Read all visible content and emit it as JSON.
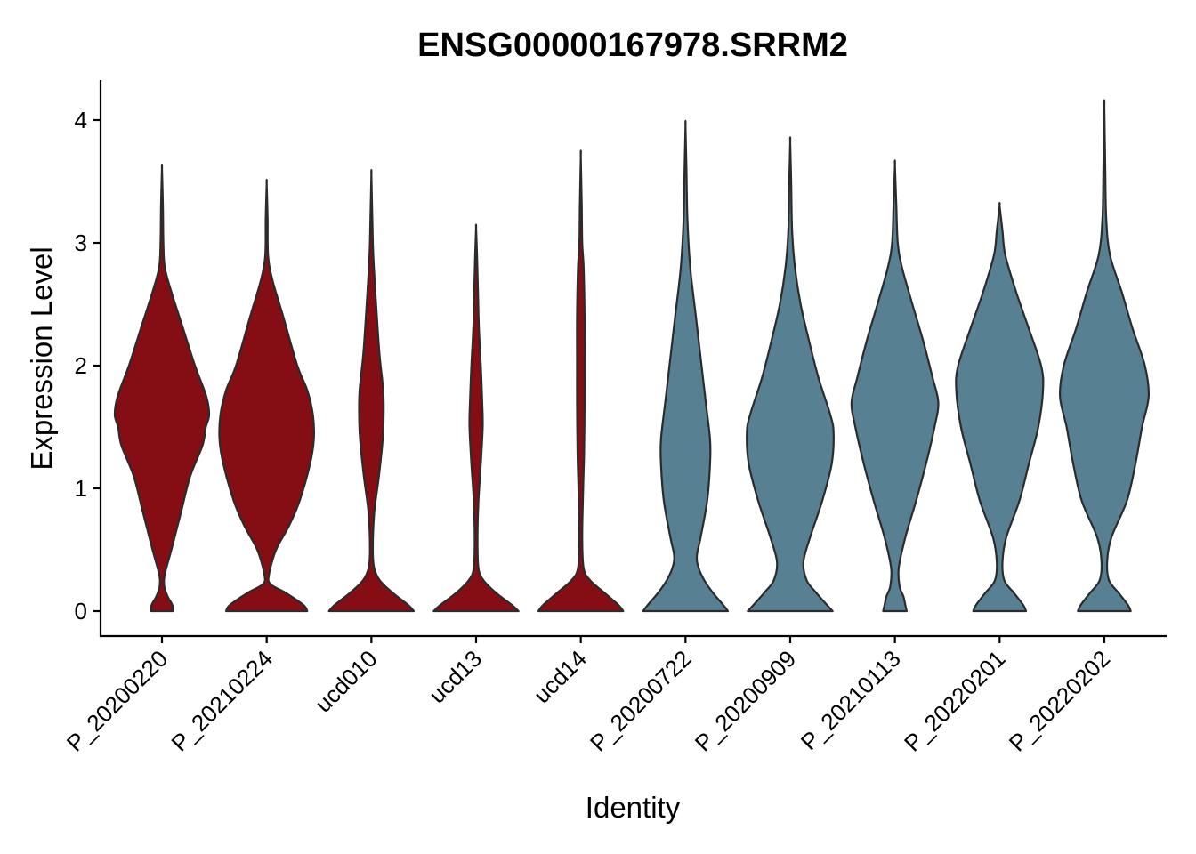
{
  "chart_data": {
    "type": "violin",
    "title": "ENSG00000167978.SRRM2",
    "xlabel": "Identity",
    "ylabel": "Expression Level",
    "ylim": [
      -0.2,
      4.3
    ],
    "yticks": [
      0,
      1,
      2,
      3,
      4
    ],
    "grid": false,
    "legend": "none",
    "categories": [
      "P_20200220",
      "P_20210224",
      "ucd010",
      "ucd13",
      "ucd14",
      "P_20200722",
      "P_20200909",
      "P_20210113",
      "P_20220201",
      "P_20220202"
    ],
    "colors": [
      "#850e15",
      "#850e15",
      "#850e15",
      "#850e15",
      "#850e15",
      "#578193",
      "#578193",
      "#578193",
      "#578193",
      "#578193"
    ],
    "series": [
      {
        "category": "P_20200220",
        "max": 3.6,
        "profile": [
          [
            0,
            0.23
          ],
          [
            0.05,
            0.22
          ],
          [
            0.12,
            0.12
          ],
          [
            0.2,
            0.05
          ],
          [
            0.3,
            0.06
          ],
          [
            0.5,
            0.2
          ],
          [
            0.8,
            0.4
          ],
          [
            1.1,
            0.6
          ],
          [
            1.35,
            0.86
          ],
          [
            1.5,
            0.93
          ],
          [
            1.6,
            1.0
          ],
          [
            1.75,
            0.94
          ],
          [
            2.0,
            0.7
          ],
          [
            2.3,
            0.45
          ],
          [
            2.6,
            0.2
          ],
          [
            2.8,
            0.06
          ],
          [
            3.0,
            0.03
          ],
          [
            3.3,
            0.02
          ],
          [
            3.6,
            0.0
          ]
        ]
      },
      {
        "category": "P_20210224",
        "max": 3.48,
        "profile": [
          [
            0,
            0.86
          ],
          [
            0.05,
            0.78
          ],
          [
            0.15,
            0.4
          ],
          [
            0.22,
            0.08
          ],
          [
            0.3,
            0.05
          ],
          [
            0.5,
            0.2
          ],
          [
            0.7,
            0.48
          ],
          [
            0.9,
            0.7
          ],
          [
            1.2,
            0.92
          ],
          [
            1.4,
            1.0
          ],
          [
            1.6,
            0.98
          ],
          [
            1.8,
            0.86
          ],
          [
            2.0,
            0.65
          ],
          [
            2.4,
            0.35
          ],
          [
            2.7,
            0.12
          ],
          [
            2.9,
            0.03
          ],
          [
            3.2,
            0.02
          ],
          [
            3.48,
            0.0
          ]
        ]
      },
      {
        "category": "ucd010",
        "max": 3.55,
        "profile": [
          [
            0,
            0.9
          ],
          [
            0.05,
            0.78
          ],
          [
            0.15,
            0.45
          ],
          [
            0.25,
            0.18
          ],
          [
            0.35,
            0.06
          ],
          [
            0.5,
            0.03
          ],
          [
            0.8,
            0.06
          ],
          [
            1.1,
            0.16
          ],
          [
            1.4,
            0.24
          ],
          [
            1.6,
            0.26
          ],
          [
            1.8,
            0.25
          ],
          [
            2.1,
            0.17
          ],
          [
            2.5,
            0.1
          ],
          [
            2.9,
            0.04
          ],
          [
            3.2,
            0.02
          ],
          [
            3.55,
            0.0
          ]
        ]
      },
      {
        "category": "ucd13",
        "max": 3.12,
        "profile": [
          [
            0,
            0.9
          ],
          [
            0.05,
            0.76
          ],
          [
            0.15,
            0.42
          ],
          [
            0.25,
            0.16
          ],
          [
            0.35,
            0.05
          ],
          [
            0.6,
            0.03
          ],
          [
            0.9,
            0.05
          ],
          [
            1.2,
            0.1
          ],
          [
            1.5,
            0.14
          ],
          [
            1.7,
            0.13
          ],
          [
            2.0,
            0.1
          ],
          [
            2.3,
            0.06
          ],
          [
            2.6,
            0.04
          ],
          [
            2.9,
            0.02
          ],
          [
            3.12,
            0.0
          ]
        ]
      },
      {
        "category": "ucd14",
        "max": 3.7,
        "profile": [
          [
            0,
            0.9
          ],
          [
            0.05,
            0.8
          ],
          [
            0.15,
            0.5
          ],
          [
            0.25,
            0.2
          ],
          [
            0.35,
            0.06
          ],
          [
            0.6,
            0.03
          ],
          [
            1.0,
            0.05
          ],
          [
            1.3,
            0.07
          ],
          [
            1.7,
            0.08
          ],
          [
            2.0,
            0.08
          ],
          [
            2.4,
            0.08
          ],
          [
            2.8,
            0.06
          ],
          [
            3.0,
            0.03
          ],
          [
            3.3,
            0.02
          ],
          [
            3.7,
            0.0
          ]
        ]
      },
      {
        "category": "P_20200722",
        "max": 3.95,
        "profile": [
          [
            0,
            0.9
          ],
          [
            0.05,
            0.8
          ],
          [
            0.15,
            0.58
          ],
          [
            0.25,
            0.4
          ],
          [
            0.35,
            0.28
          ],
          [
            0.45,
            0.24
          ],
          [
            0.6,
            0.32
          ],
          [
            0.9,
            0.46
          ],
          [
            1.2,
            0.52
          ],
          [
            1.4,
            0.52
          ],
          [
            1.7,
            0.43
          ],
          [
            2.0,
            0.34
          ],
          [
            2.4,
            0.22
          ],
          [
            2.8,
            0.1
          ],
          [
            3.2,
            0.04
          ],
          [
            3.6,
            0.02
          ],
          [
            3.95,
            0.0
          ]
        ]
      },
      {
        "category": "P_20200909",
        "max": 3.82,
        "profile": [
          [
            0,
            0.9
          ],
          [
            0.05,
            0.78
          ],
          [
            0.15,
            0.55
          ],
          [
            0.25,
            0.35
          ],
          [
            0.4,
            0.28
          ],
          [
            0.6,
            0.42
          ],
          [
            0.9,
            0.68
          ],
          [
            1.2,
            0.88
          ],
          [
            1.45,
            0.92
          ],
          [
            1.6,
            0.85
          ],
          [
            1.9,
            0.6
          ],
          [
            2.2,
            0.4
          ],
          [
            2.5,
            0.22
          ],
          [
            2.8,
            0.1
          ],
          [
            3.1,
            0.04
          ],
          [
            3.5,
            0.02
          ],
          [
            3.82,
            0.0
          ]
        ]
      },
      {
        "category": "P_20210113",
        "max": 3.63,
        "profile": [
          [
            0,
            0.25
          ],
          [
            0.05,
            0.22
          ],
          [
            0.12,
            0.18
          ],
          [
            0.2,
            0.1
          ],
          [
            0.35,
            0.08
          ],
          [
            0.6,
            0.22
          ],
          [
            0.9,
            0.45
          ],
          [
            1.2,
            0.66
          ],
          [
            1.5,
            0.84
          ],
          [
            1.7,
            0.92
          ],
          [
            1.9,
            0.8
          ],
          [
            2.2,
            0.6
          ],
          [
            2.5,
            0.37
          ],
          [
            2.8,
            0.15
          ],
          [
            3.0,
            0.06
          ],
          [
            3.3,
            0.03
          ],
          [
            3.63,
            0.0
          ]
        ]
      },
      {
        "category": "P_20220201",
        "max": 3.3,
        "profile": [
          [
            0,
            0.56
          ],
          [
            0.05,
            0.5
          ],
          [
            0.15,
            0.3
          ],
          [
            0.25,
            0.1
          ],
          [
            0.4,
            0.06
          ],
          [
            0.6,
            0.14
          ],
          [
            0.9,
            0.42
          ],
          [
            1.2,
            0.62
          ],
          [
            1.5,
            0.82
          ],
          [
            1.8,
            0.92
          ],
          [
            2.0,
            0.88
          ],
          [
            2.3,
            0.62
          ],
          [
            2.6,
            0.35
          ],
          [
            2.9,
            0.12
          ],
          [
            3.1,
            0.06
          ],
          [
            3.3,
            0.0
          ]
        ]
      },
      {
        "category": "P_20220202",
        "max": 4.1,
        "profile": [
          [
            0,
            0.56
          ],
          [
            0.05,
            0.5
          ],
          [
            0.15,
            0.3
          ],
          [
            0.25,
            0.1
          ],
          [
            0.4,
            0.06
          ],
          [
            0.6,
            0.15
          ],
          [
            0.9,
            0.48
          ],
          [
            1.2,
            0.66
          ],
          [
            1.5,
            0.8
          ],
          [
            1.75,
            0.94
          ],
          [
            2.0,
            0.86
          ],
          [
            2.3,
            0.6
          ],
          [
            2.6,
            0.37
          ],
          [
            2.9,
            0.12
          ],
          [
            3.2,
            0.04
          ],
          [
            3.6,
            0.02
          ],
          [
            4.1,
            0.0
          ]
        ]
      }
    ]
  }
}
